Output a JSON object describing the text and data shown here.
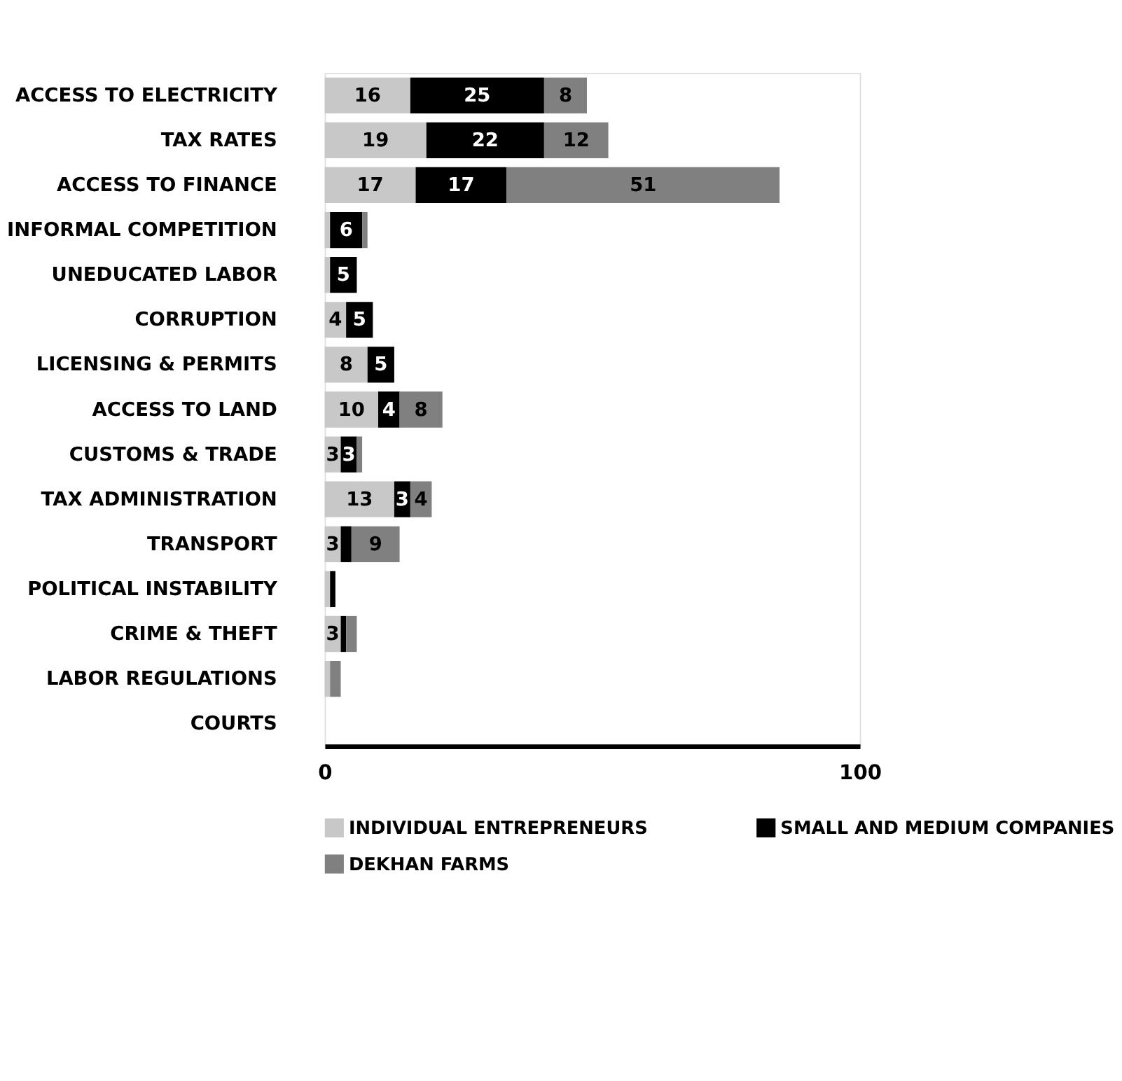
{
  "chart_data": {
    "type": "bar",
    "orientation": "horizontal",
    "stacked": true,
    "categories": [
      "ACCESS TO ELECTRICITY",
      "TAX RATES",
      "ACCESS TO FINANCE",
      "INFORMAL COMPETITION",
      "UNEDUCATED LABOR",
      "CORRUPTION",
      "LICENSING & PERMITS",
      "ACCESS TO LAND",
      "CUSTOMS & TRADE",
      "TAX ADMINISTRATION",
      "TRANSPORT",
      "POLITICAL INSTABILITY",
      "CRIME & THEFT",
      "LABOR REGULATIONS",
      "COURTS"
    ],
    "series": [
      {
        "name": "INDIVIDUAL ENTREPRENEURS",
        "color": "#c8c8c8",
        "values": [
          16,
          19,
          17,
          1,
          1,
          4,
          8,
          10,
          3,
          13,
          3,
          1,
          3,
          1,
          0
        ],
        "value_labels": [
          "16",
          "19",
          "17",
          null,
          null,
          "4",
          "8",
          "10",
          "3",
          "13",
          "3",
          null,
          "3",
          null,
          null
        ]
      },
      {
        "name": "SMALL AND MEDIUM COMPANIES",
        "color": "#000000",
        "values": [
          25,
          22,
          17,
          6,
          5,
          5,
          5,
          4,
          3,
          3,
          2,
          1,
          1,
          0,
          0
        ],
        "value_labels": [
          "25",
          "22",
          "17",
          "6",
          "5",
          "5",
          "5",
          "4",
          "3",
          "3",
          null,
          null,
          null,
          null,
          null
        ]
      },
      {
        "name": "DEKHAN FARMS",
        "color": "#808080",
        "values": [
          8,
          12,
          51,
          1,
          0,
          0,
          0,
          8,
          1,
          4,
          9,
          0,
          2,
          2,
          0
        ],
        "value_labels": [
          "8",
          "12",
          "51",
          null,
          null,
          null,
          null,
          "8",
          null,
          "4",
          "9",
          null,
          null,
          null,
          null
        ]
      }
    ],
    "xlim": [
      0,
      100
    ],
    "xticks": [
      0,
      100
    ],
    "grid": false,
    "legend": "bottom"
  }
}
